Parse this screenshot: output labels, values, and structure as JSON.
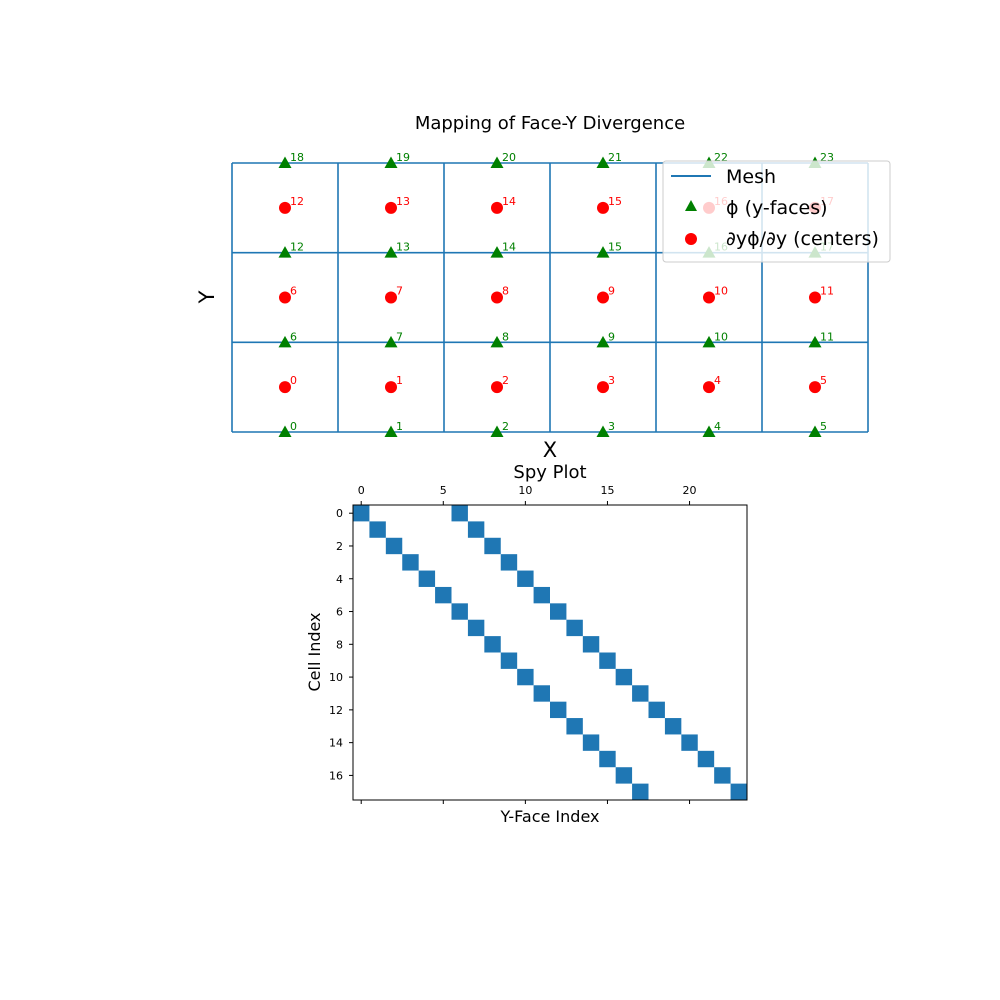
{
  "chart_data": [
    {
      "type": "scatter",
      "title": "Mapping of Face-Y Divergence",
      "xlabel": "X",
      "ylabel": "Y",
      "grid": false,
      "legend_location": "top-right",
      "mesh": {
        "nx": 6,
        "ny": 3,
        "x_range": [
          0,
          6
        ],
        "y_range": [
          0,
          3
        ],
        "color": "#1f77b4"
      },
      "series": [
        {
          "name": "Mesh",
          "kind": "line",
          "color": "#1f77b4"
        },
        {
          "name": "ϕ (y-faces)",
          "kind": "triangle",
          "color": "#008000",
          "x": [
            0.5,
            1.5,
            2.5,
            3.5,
            4.5,
            5.5,
            0.5,
            1.5,
            2.5,
            3.5,
            4.5,
            5.5,
            0.5,
            1.5,
            2.5,
            3.5,
            4.5,
            5.5,
            0.5,
            1.5,
            2.5,
            3.5,
            4.5,
            5.5
          ],
          "y": [
            0,
            0,
            0,
            0,
            0,
            0,
            1,
            1,
            1,
            1,
            1,
            1,
            2,
            2,
            2,
            2,
            2,
            2,
            3,
            3,
            3,
            3,
            3,
            3
          ],
          "labels": [
            "0",
            "1",
            "2",
            "3",
            "4",
            "5",
            "6",
            "7",
            "8",
            "9",
            "10",
            "11",
            "12",
            "13",
            "14",
            "15",
            "16",
            "17",
            "18",
            "19",
            "20",
            "21",
            "22",
            "23"
          ]
        },
        {
          "name": "∂yϕ/∂y (centers)",
          "kind": "circle",
          "color": "#ff0000",
          "x": [
            0.5,
            1.5,
            2.5,
            3.5,
            4.5,
            5.5,
            0.5,
            1.5,
            2.5,
            3.5,
            4.5,
            5.5,
            0.5,
            1.5,
            2.5,
            3.5,
            4.5,
            5.5
          ],
          "y": [
            0.5,
            0.5,
            0.5,
            0.5,
            0.5,
            0.5,
            1.5,
            1.5,
            1.5,
            1.5,
            1.5,
            1.5,
            2.5,
            2.5,
            2.5,
            2.5,
            2.5,
            2.5
          ],
          "labels": [
            "0",
            "1",
            "2",
            "3",
            "4",
            "5",
            "6",
            "7",
            "8",
            "9",
            "10",
            "11",
            "12",
            "13",
            "14",
            "15",
            "16",
            "17"
          ]
        }
      ]
    },
    {
      "type": "heatmap",
      "title": "Spy Plot",
      "xlabel": "Y-Face Index",
      "ylabel": "Cell Index",
      "xlim": [
        -0.5,
        23.5
      ],
      "ylim": [
        17.5,
        -0.5
      ],
      "x_ticks": [
        0,
        5,
        10,
        15,
        20
      ],
      "y_ticks": [
        0,
        2,
        4,
        6,
        8,
        10,
        12,
        14,
        16
      ],
      "color": "#1f77b4",
      "nonzeros": [
        [
          0,
          0
        ],
        [
          0,
          6
        ],
        [
          1,
          1
        ],
        [
          1,
          7
        ],
        [
          2,
          2
        ],
        [
          2,
          8
        ],
        [
          3,
          3
        ],
        [
          3,
          9
        ],
        [
          4,
          4
        ],
        [
          4,
          10
        ],
        [
          5,
          5
        ],
        [
          5,
          11
        ],
        [
          6,
          6
        ],
        [
          6,
          12
        ],
        [
          7,
          7
        ],
        [
          7,
          13
        ],
        [
          8,
          8
        ],
        [
          8,
          14
        ],
        [
          9,
          9
        ],
        [
          9,
          15
        ],
        [
          10,
          10
        ],
        [
          10,
          16
        ],
        [
          11,
          11
        ],
        [
          11,
          17
        ],
        [
          12,
          12
        ],
        [
          12,
          18
        ],
        [
          13,
          13
        ],
        [
          13,
          19
        ],
        [
          14,
          14
        ],
        [
          14,
          20
        ],
        [
          15,
          15
        ],
        [
          15,
          21
        ],
        [
          16,
          16
        ],
        [
          16,
          22
        ],
        [
          17,
          17
        ],
        [
          17,
          23
        ]
      ]
    }
  ]
}
